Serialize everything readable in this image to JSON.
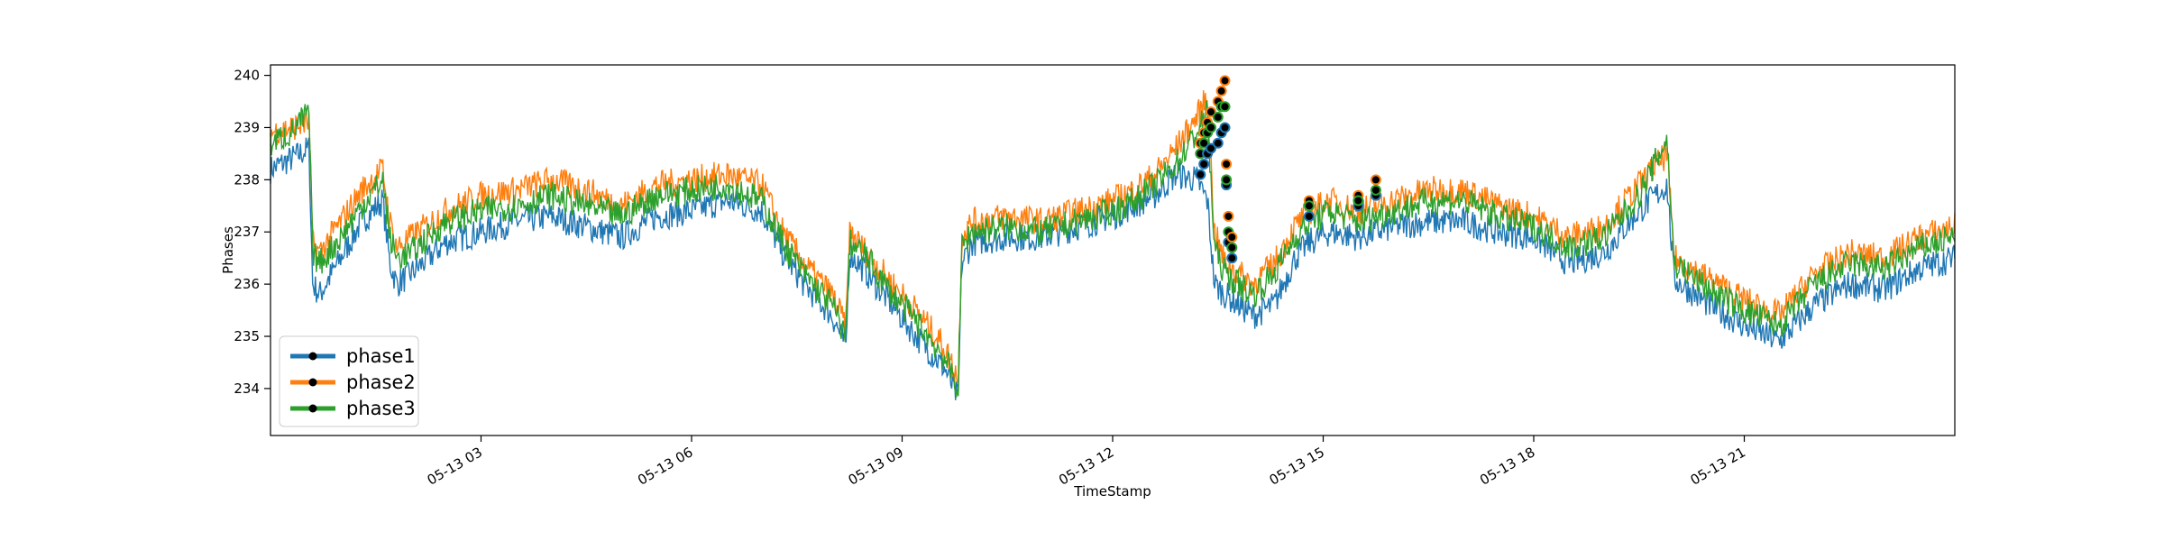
{
  "chart_data": {
    "type": "line",
    "title": "",
    "xlabel": "TimeStamp",
    "ylabel": "Phases",
    "x_range_hours": [
      0.0,
      24.0
    ],
    "ylim": [
      233.1,
      240.2
    ],
    "x_ticks": [
      {
        "hour": 3,
        "label": "05-13 03"
      },
      {
        "hour": 6,
        "label": "05-13 06"
      },
      {
        "hour": 9,
        "label": "05-13 09"
      },
      {
        "hour": 12,
        "label": "05-13 12"
      },
      {
        "hour": 15,
        "label": "05-13 15"
      },
      {
        "hour": 18,
        "label": "05-13 18"
      },
      {
        "hour": 21,
        "label": "05-13 21"
      }
    ],
    "y_ticks": [
      234,
      235,
      236,
      237,
      238,
      239,
      240
    ],
    "legend_position": "lower-left",
    "x_hours": [
      0.0,
      0.3,
      0.55,
      0.6,
      0.7,
      1.0,
      1.3,
      1.6,
      1.7,
      1.8,
      2.0,
      2.5,
      3.0,
      3.5,
      4.0,
      4.5,
      5.0,
      5.5,
      6.0,
      6.5,
      7.0,
      7.3,
      7.6,
      8.0,
      8.2,
      8.25,
      8.5,
      8.8,
      9.2,
      9.6,
      9.8,
      9.85,
      10.0,
      10.5,
      11.0,
      11.5,
      12.0,
      12.3,
      12.6,
      12.9,
      13.2,
      13.35,
      13.45,
      13.6,
      14.0,
      14.3,
      14.6,
      14.8,
      15.1,
      15.5,
      16.0,
      16.5,
      17.0,
      17.5,
      18.0,
      18.5,
      19.0,
      19.5,
      19.9,
      20.0,
      20.5,
      21.0,
      21.5,
      22.0,
      22.5,
      23.0,
      23.5,
      24.0
    ],
    "series": [
      {
        "name": "phase1",
        "color": "#1f77b4",
        "values": [
          238.2,
          238.4,
          238.6,
          236.0,
          235.8,
          236.5,
          237.2,
          237.6,
          236.4,
          236.0,
          236.2,
          236.8,
          237.0,
          237.2,
          237.3,
          237.1,
          236.9,
          237.3,
          237.4,
          237.6,
          237.4,
          236.6,
          236.0,
          235.4,
          234.8,
          236.6,
          236.2,
          235.7,
          235.0,
          234.4,
          233.8,
          236.4,
          236.8,
          236.9,
          236.9,
          237.1,
          237.3,
          237.5,
          237.7,
          238.1,
          238.0,
          237.6,
          236.0,
          235.8,
          235.4,
          235.6,
          236.5,
          236.8,
          237.0,
          236.9,
          237.1,
          237.2,
          237.2,
          237.0,
          236.9,
          236.4,
          236.6,
          237.4,
          237.9,
          236.1,
          235.6,
          235.2,
          234.9,
          235.6,
          236.0,
          235.9,
          236.3,
          236.5
        ]
      },
      {
        "name": "phase2",
        "color": "#ff7f0e",
        "values": [
          238.9,
          239.0,
          239.1,
          236.8,
          236.6,
          237.2,
          237.8,
          238.2,
          237.2,
          236.7,
          236.9,
          237.4,
          237.7,
          237.8,
          238.0,
          237.8,
          237.5,
          237.9,
          238.0,
          238.1,
          237.9,
          237.0,
          236.4,
          235.8,
          235.2,
          237.0,
          236.6,
          236.1,
          235.5,
          234.8,
          234.2,
          236.9,
          237.2,
          237.3,
          237.2,
          237.4,
          237.6,
          237.8,
          238.1,
          238.6,
          239.2,
          239.6,
          237.0,
          236.4,
          236.0,
          236.4,
          237.1,
          237.4,
          237.6,
          237.4,
          237.6,
          237.8,
          237.8,
          237.5,
          237.3,
          236.9,
          237.1,
          237.9,
          238.5,
          236.5,
          236.1,
          235.7,
          235.4,
          236.2,
          236.6,
          236.5,
          236.9,
          237.1
        ]
      },
      {
        "name": "phase3",
        "color": "#2ca02c",
        "values": [
          238.7,
          238.9,
          239.3,
          236.6,
          236.4,
          236.9,
          237.5,
          238.0,
          236.9,
          236.5,
          236.6,
          237.2,
          237.4,
          237.5,
          237.7,
          237.5,
          237.3,
          237.7,
          237.8,
          237.9,
          237.6,
          236.8,
          236.2,
          235.6,
          235.0,
          236.8,
          236.5,
          235.9,
          235.3,
          234.6,
          234.0,
          236.7,
          237.0,
          237.1,
          237.0,
          237.2,
          237.4,
          237.6,
          237.9,
          238.3,
          238.9,
          239.3,
          236.7,
          236.2,
          235.8,
          236.2,
          236.9,
          237.2,
          237.4,
          237.2,
          237.4,
          237.6,
          237.6,
          237.3,
          237.1,
          236.7,
          236.9,
          237.7,
          238.8,
          236.4,
          235.9,
          235.5,
          235.2,
          236.0,
          236.4,
          236.3,
          236.7,
          236.9
        ]
      }
    ],
    "anomaly_points": [
      {
        "x_hour": 13.25,
        "values": [
          238.1,
          238.7,
          238.5
        ]
      },
      {
        "x_hour": 13.3,
        "values": [
          238.3,
          238.9,
          238.7
        ]
      },
      {
        "x_hour": 13.35,
        "values": [
          238.5,
          239.1,
          238.9
        ]
      },
      {
        "x_hour": 13.4,
        "values": [
          238.6,
          239.3,
          239.0
        ]
      },
      {
        "x_hour": 13.5,
        "values": [
          238.7,
          239.5,
          239.2
        ]
      },
      {
        "x_hour": 13.55,
        "values": [
          238.9,
          239.7,
          239.4
        ]
      },
      {
        "x_hour": 13.6,
        "values": [
          239.0,
          239.9,
          239.4
        ]
      },
      {
        "x_hour": 13.62,
        "values": [
          237.9,
          238.3,
          238.0
        ]
      },
      {
        "x_hour": 13.65,
        "values": [
          236.8,
          237.3,
          237.0
        ]
      },
      {
        "x_hour": 13.7,
        "values": [
          236.5,
          236.9,
          236.7
        ]
      },
      {
        "x_hour": 14.8,
        "values": [
          237.3,
          237.6,
          237.5
        ]
      },
      {
        "x_hour": 15.5,
        "values": [
          237.5,
          237.7,
          237.6
        ]
      },
      {
        "x_hour": 15.75,
        "values": [
          237.7,
          238.0,
          237.8
        ]
      }
    ]
  }
}
